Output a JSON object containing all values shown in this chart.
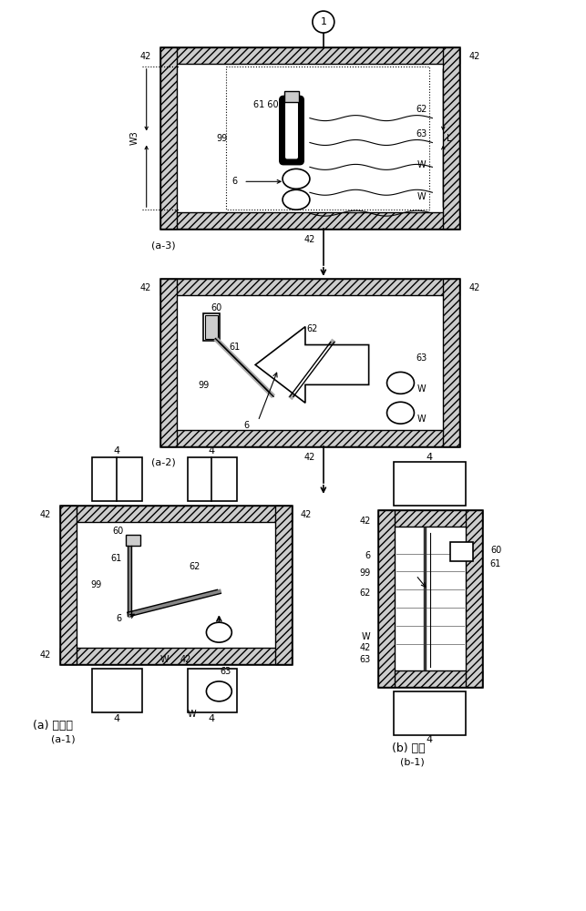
{
  "bg_color": "#ffffff",
  "line_color": "#000000",
  "fig_width": 6.43,
  "fig_height": 10.0,
  "labels": {
    "a1_label": "(a-1)",
    "a2_label": "(a-2)",
    "a3_label": "(a-3)",
    "b1_label": "(b-1)",
    "a_title": "(a) 上表面",
    "b_title": "(b) 側面"
  }
}
